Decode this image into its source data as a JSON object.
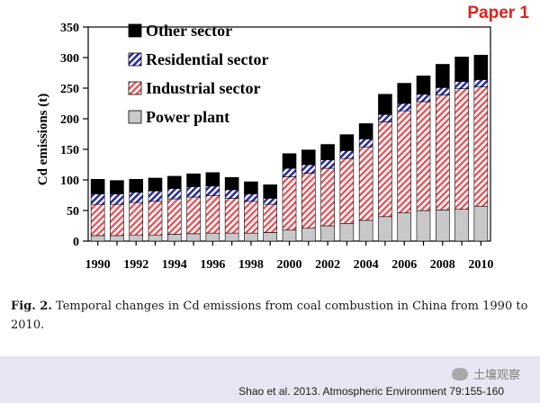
{
  "label": "Paper 1",
  "chart_data": {
    "type": "bar",
    "stacked": true,
    "ylabel": "Cd emissions (t)",
    "xlabel": "",
    "ylim": [
      0,
      350
    ],
    "yticks": [
      0,
      50,
      100,
      150,
      200,
      250,
      300,
      350
    ],
    "xtick_labels": [
      "1990",
      "1992",
      "1994",
      "1996",
      "1998",
      "2000",
      "2002",
      "2004",
      "2006",
      "2008",
      "2010"
    ],
    "categories": [
      "1990",
      "1991",
      "1992",
      "1993",
      "1994",
      "1995",
      "1996",
      "1997",
      "1998",
      "1999",
      "2000",
      "2001",
      "2002",
      "2003",
      "2004",
      "2005",
      "2006",
      "2007",
      "2008",
      "2009",
      "2010"
    ],
    "legend_position": "top-left",
    "series": [
      {
        "name": "Power plant",
        "color": "#c8c8c8",
        "pattern": "solid",
        "values": [
          9,
          9,
          10,
          10,
          11,
          12,
          13,
          13,
          13,
          14,
          18,
          21,
          25,
          29,
          34,
          40,
          46,
          50,
          51,
          52,
          57
        ]
      },
      {
        "name": "Industrial sector",
        "color": "#e8545a",
        "pattern": "hatch-red",
        "values": [
          51,
          51,
          53,
          55,
          58,
          60,
          61,
          57,
          52,
          46,
          87,
          90,
          94,
          106,
          120,
          155,
          167,
          178,
          188,
          197,
          195
        ]
      },
      {
        "name": "Residential sector",
        "color": "#2a2aa0",
        "pattern": "hatch-blue",
        "values": [
          17,
          17,
          17,
          17,
          17,
          17,
          16,
          14,
          12,
          10,
          14,
          14,
          14,
          13,
          13,
          12,
          12,
          12,
          12,
          12,
          12
        ]
      },
      {
        "name": "Other sector",
        "color": "#000000",
        "pattern": "solid",
        "values": [
          24,
          22,
          21,
          21,
          20,
          21,
          22,
          20,
          20,
          22,
          24,
          24,
          25,
          26,
          25,
          33,
          33,
          30,
          38,
          40,
          40
        ]
      }
    ]
  },
  "caption": {
    "label": "Fig. 2.",
    "text": "Temporal changes in Cd emissions from coal combustion in China from 1990 to 2010."
  },
  "footer": {
    "watermark": "土壤观察",
    "citation": "Shao et al. 2013. Atmospheric Environment 79:155-160"
  }
}
